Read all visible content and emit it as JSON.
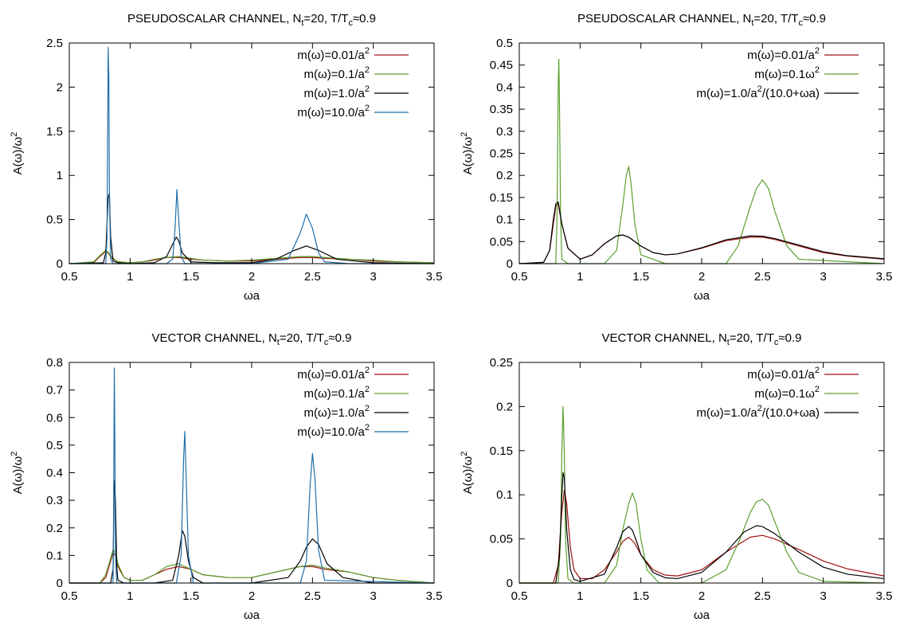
{
  "figure": {
    "panels": [
      {
        "title": {
          "main": "PSEUDOSCALAR CHANNEL, N",
          "sub": "t",
          "mid": "=20, T/T",
          "sub2": "c",
          "end": "≈0.9"
        }
      },
      {
        "title": {
          "main": "PSEUDOSCALAR CHANNEL, N",
          "sub": "t",
          "mid": "=20, T/T",
          "sub2": "c",
          "end": "≈0.9"
        }
      },
      {
        "title": {
          "main": "VECTOR CHANNEL, N",
          "sub": "t",
          "mid": "=20, T/T",
          "sub2": "c",
          "end": "≈0.9"
        }
      },
      {
        "title": {
          "main": "VECTOR CHANNEL, N",
          "sub": "t",
          "mid": "=20, T/T",
          "sub2": "c",
          "end": "≈0.9"
        }
      }
    ]
  },
  "chart_data": [
    {
      "type": "line",
      "title": "PSEUDOSCALAR CHANNEL, Nt=20, T/Tc≈0.9",
      "xlabel": "ωa",
      "ylabel": {
        "base": "A(ω)/ω",
        "sup": "2"
      },
      "xlim": [
        0.5,
        3.5
      ],
      "ylim": [
        0,
        2.5
      ],
      "xticks": [
        0.5,
        1,
        1.5,
        2,
        2.5,
        3,
        3.5
      ],
      "xtick_labels": [
        "0.5",
        "1",
        "1.5",
        "2",
        "2.5",
        "3",
        "3.5"
      ],
      "yticks": [
        0,
        0.5,
        1,
        1.5,
        2,
        2.5
      ],
      "ytick_labels": [
        "0",
        "0.5",
        "1",
        "1.5",
        "2",
        "2.5"
      ],
      "legend_position": "top-right",
      "series": [
        {
          "name": "m(ω)=0.01/a",
          "name_sup": "2",
          "color": "#a01010",
          "x": [
            0.5,
            0.7,
            0.75,
            0.8,
            0.82,
            0.85,
            0.9,
            1.0,
            1.1,
            1.2,
            1.3,
            1.4,
            1.5,
            1.6,
            1.8,
            2.0,
            2.2,
            2.4,
            2.5,
            2.6,
            2.8,
            3.0,
            3.2,
            3.5
          ],
          "y": [
            0,
            0.01,
            0.08,
            0.14,
            0.12,
            0.06,
            0.02,
            0.01,
            0.02,
            0.04,
            0.07,
            0.07,
            0.05,
            0.04,
            0.03,
            0.03,
            0.05,
            0.07,
            0.07,
            0.06,
            0.05,
            0.03,
            0.02,
            0.01
          ]
        },
        {
          "name": "m(ω)=0.1/a",
          "name_sup": "2",
          "color": "#5aa02c",
          "x": [
            0.5,
            0.7,
            0.75,
            0.8,
            0.82,
            0.85,
            0.9,
            1.0,
            1.1,
            1.2,
            1.3,
            1.4,
            1.5,
            1.6,
            1.8,
            2.0,
            2.2,
            2.4,
            2.5,
            2.6,
            2.8,
            3.0,
            3.2,
            3.5
          ],
          "y": [
            0,
            0.02,
            0.09,
            0.15,
            0.13,
            0.07,
            0.02,
            0.01,
            0.02,
            0.05,
            0.07,
            0.08,
            0.06,
            0.04,
            0.03,
            0.04,
            0.06,
            0.08,
            0.08,
            0.07,
            0.05,
            0.04,
            0.02,
            0.01
          ]
        },
        {
          "name": "m(ω)=1.0/a",
          "name_sup": "2",
          "color": "#000000",
          "x": [
            0.5,
            0.78,
            0.8,
            0.82,
            0.83,
            0.84,
            0.86,
            0.9,
            1.0,
            1.2,
            1.3,
            1.35,
            1.38,
            1.4,
            1.43,
            1.5,
            1.7,
            2.0,
            2.2,
            2.35,
            2.45,
            2.55,
            2.7,
            3.0,
            3.5
          ],
          "y": [
            0,
            0.01,
            0.12,
            0.75,
            0.8,
            0.3,
            0.03,
            0.01,
            0.0,
            0.01,
            0.08,
            0.22,
            0.3,
            0.26,
            0.12,
            0.02,
            0.01,
            0.01,
            0.05,
            0.15,
            0.2,
            0.15,
            0.05,
            0.01,
            0.0
          ]
        },
        {
          "name": "m(ω)=10.0/a",
          "name_sup": "2",
          "color": "#1f6fa8",
          "x": [
            0.5,
            0.8,
            0.81,
            0.82,
            0.825,
            0.83,
            0.84,
            0.86,
            1.0,
            1.3,
            1.35,
            1.37,
            1.385,
            1.4,
            1.42,
            1.45,
            1.6,
            2.0,
            2.3,
            2.4,
            2.45,
            2.5,
            2.55,
            2.6,
            2.8,
            3.5
          ],
          "y": [
            0,
            0.0,
            0.3,
            2.45,
            2.1,
            0.8,
            0.05,
            0.0,
            0.0,
            0.0,
            0.05,
            0.4,
            0.84,
            0.5,
            0.08,
            0.0,
            0.0,
            0.0,
            0.05,
            0.35,
            0.56,
            0.4,
            0.12,
            0.02,
            0.0,
            0.0
          ]
        }
      ]
    },
    {
      "type": "line",
      "title": "PSEUDOSCALAR CHANNEL, Nt=20, T/Tc≈0.9",
      "xlabel": "ωa",
      "ylabel": {
        "base": "A(ω)/ω",
        "sup": "2"
      },
      "xlim": [
        0.5,
        3.5
      ],
      "ylim": [
        0,
        0.5
      ],
      "xticks": [
        0.5,
        1,
        1.5,
        2,
        2.5,
        3,
        3.5
      ],
      "xtick_labels": [
        "0.5",
        "1",
        "1.5",
        "2",
        "2.5",
        "3",
        "3.5"
      ],
      "yticks": [
        0,
        0.05,
        0.1,
        0.15,
        0.2,
        0.25,
        0.3,
        0.35,
        0.4,
        0.45,
        0.5
      ],
      "ytick_labels": [
        "0",
        "0.05",
        "0.1",
        "0.15",
        "0.2",
        "0.25",
        "0.3",
        "0.35",
        "0.4",
        "0.45",
        "0.5"
      ],
      "legend_position": "top-right",
      "series": [
        {
          "name": "m(ω)=0.01/a",
          "name_sup": "2",
          "color": "#a01010",
          "x": [
            0.5,
            0.7,
            0.75,
            0.78,
            0.8,
            0.82,
            0.85,
            0.9,
            1.0,
            1.1,
            1.2,
            1.3,
            1.35,
            1.4,
            1.5,
            1.6,
            1.7,
            1.8,
            2.0,
            2.2,
            2.4,
            2.5,
            2.6,
            2.8,
            3.0,
            3.2,
            3.5
          ],
          "y": [
            0,
            0.003,
            0.03,
            0.09,
            0.13,
            0.135,
            0.09,
            0.035,
            0.01,
            0.02,
            0.045,
            0.063,
            0.065,
            0.06,
            0.04,
            0.025,
            0.02,
            0.022,
            0.035,
            0.052,
            0.06,
            0.06,
            0.055,
            0.04,
            0.025,
            0.017,
            0.01
          ]
        },
        {
          "name": "m(ω)=0.1ω",
          "name_sup": "2",
          "color": "#5aa02c",
          "x": [
            0.5,
            0.8,
            0.81,
            0.82,
            0.825,
            0.83,
            0.84,
            0.85,
            0.9,
            1.2,
            1.3,
            1.35,
            1.38,
            1.4,
            1.42,
            1.45,
            1.5,
            1.7,
            2.2,
            2.3,
            2.4,
            2.45,
            2.5,
            2.55,
            2.6,
            2.7,
            2.8,
            3.5
          ],
          "y": [
            0,
            0.0,
            0.1,
            0.4,
            0.463,
            0.38,
            0.1,
            0.01,
            0.0,
            0.0,
            0.03,
            0.13,
            0.2,
            0.22,
            0.18,
            0.09,
            0.02,
            0.0,
            0.0,
            0.04,
            0.13,
            0.17,
            0.19,
            0.17,
            0.12,
            0.04,
            0.01,
            0.0
          ]
        },
        {
          "name": "m(ω)=1.0/a",
          "name_sup": "2",
          "name_tail": "/(10.0+ωa)",
          "color": "#000000",
          "x": [
            0.5,
            0.7,
            0.75,
            0.78,
            0.8,
            0.82,
            0.85,
            0.9,
            1.0,
            1.1,
            1.2,
            1.3,
            1.35,
            1.4,
            1.5,
            1.6,
            1.7,
            1.8,
            2.0,
            2.2,
            2.4,
            2.5,
            2.6,
            2.8,
            3.0,
            3.2,
            3.5
          ],
          "y": [
            0,
            0.003,
            0.03,
            0.1,
            0.135,
            0.14,
            0.09,
            0.035,
            0.01,
            0.02,
            0.045,
            0.063,
            0.065,
            0.06,
            0.04,
            0.025,
            0.02,
            0.022,
            0.036,
            0.054,
            0.063,
            0.062,
            0.057,
            0.042,
            0.027,
            0.018,
            0.011
          ]
        }
      ]
    },
    {
      "type": "line",
      "title": "VECTOR CHANNEL, Nt=20, T/Tc≈0.9",
      "xlabel": "ωa",
      "ylabel": {
        "base": "A(ω)/ω",
        "sup": "2"
      },
      "xlim": [
        0.5,
        3.5
      ],
      "ylim": [
        0,
        0.8
      ],
      "xticks": [
        0.5,
        1,
        1.5,
        2,
        2.5,
        3,
        3.5
      ],
      "xtick_labels": [
        "0.5",
        "1",
        "1.5",
        "2",
        "2.5",
        "3",
        "3.5"
      ],
      "yticks": [
        0,
        0.1,
        0.2,
        0.3,
        0.4,
        0.5,
        0.6,
        0.7,
        0.8
      ],
      "ytick_labels": [
        "0",
        "0.1",
        "0.2",
        "0.3",
        "0.4",
        "0.5",
        "0.6",
        "0.7",
        "0.8"
      ],
      "legend_position": "top-right",
      "series": [
        {
          "name": "m(ω)=0.01/a",
          "name_sup": "2",
          "color": "#a01010",
          "x": [
            0.5,
            0.75,
            0.8,
            0.84,
            0.86,
            0.88,
            0.9,
            0.95,
            1.0,
            1.1,
            1.2,
            1.3,
            1.4,
            1.5,
            1.6,
            1.8,
            2.0,
            2.2,
            2.4,
            2.5,
            2.6,
            2.8,
            3.0,
            3.2,
            3.5
          ],
          "y": [
            0,
            0.0,
            0.02,
            0.08,
            0.11,
            0.1,
            0.06,
            0.02,
            0.01,
            0.01,
            0.03,
            0.05,
            0.06,
            0.05,
            0.03,
            0.02,
            0.02,
            0.04,
            0.06,
            0.06,
            0.05,
            0.04,
            0.02,
            0.01,
            0.0
          ]
        },
        {
          "name": "m(ω)=0.1/a",
          "name_sup": "2",
          "color": "#5aa02c",
          "x": [
            0.5,
            0.75,
            0.8,
            0.84,
            0.86,
            0.88,
            0.9,
            0.95,
            1.0,
            1.1,
            1.2,
            1.3,
            1.4,
            1.5,
            1.6,
            1.8,
            2.0,
            2.2,
            2.4,
            2.5,
            2.6,
            2.8,
            3.0,
            3.2,
            3.5
          ],
          "y": [
            0,
            0.0,
            0.03,
            0.09,
            0.12,
            0.11,
            0.07,
            0.02,
            0.01,
            0.01,
            0.03,
            0.06,
            0.07,
            0.05,
            0.03,
            0.02,
            0.02,
            0.04,
            0.06,
            0.065,
            0.055,
            0.04,
            0.02,
            0.01,
            0.0
          ]
        },
        {
          "name": "m(ω)=1.0/a",
          "name_sup": "2",
          "color": "#000000",
          "x": [
            0.5,
            0.84,
            0.86,
            0.87,
            0.88,
            0.89,
            0.9,
            0.95,
            1.2,
            1.35,
            1.4,
            1.43,
            1.45,
            1.48,
            1.52,
            1.6,
            2.0,
            2.3,
            2.4,
            2.45,
            2.5,
            2.55,
            2.62,
            2.75,
            3.0,
            3.5
          ],
          "y": [
            0,
            0.0,
            0.05,
            0.37,
            0.3,
            0.06,
            0.01,
            0.0,
            0.0,
            0.01,
            0.1,
            0.19,
            0.17,
            0.08,
            0.02,
            0.0,
            0.0,
            0.02,
            0.08,
            0.13,
            0.16,
            0.14,
            0.07,
            0.02,
            0.0,
            0.0
          ]
        },
        {
          "name": "m(ω)=10.0/a",
          "name_sup": "2",
          "color": "#1f6fa8",
          "x": [
            0.5,
            0.86,
            0.865,
            0.87,
            0.875,
            0.88,
            0.89,
            0.95,
            1.38,
            1.42,
            1.44,
            1.45,
            1.46,
            1.48,
            1.52,
            2.4,
            2.45,
            2.48,
            2.5,
            2.52,
            2.55,
            2.6,
            3.5
          ],
          "y": [
            0,
            0.0,
            0.3,
            0.78,
            0.5,
            0.1,
            0.0,
            0.0,
            0.0,
            0.1,
            0.45,
            0.55,
            0.4,
            0.1,
            0.0,
            0.0,
            0.08,
            0.35,
            0.47,
            0.38,
            0.12,
            0.01,
            0.0
          ]
        }
      ]
    },
    {
      "type": "line",
      "title": "VECTOR CHANNEL, Nt=20, T/Tc≈0.9",
      "xlabel": "ωa",
      "ylabel": {
        "base": "A(ω)/ω",
        "sup": "2"
      },
      "xlim": [
        0.5,
        3.5
      ],
      "ylim": [
        0,
        0.25
      ],
      "xticks": [
        0.5,
        1,
        1.5,
        2,
        2.5,
        3,
        3.5
      ],
      "xtick_labels": [
        "0.5",
        "1",
        "1.5",
        "2",
        "2.5",
        "3",
        "3.5"
      ],
      "yticks": [
        0,
        0.05,
        0.1,
        0.15,
        0.2,
        0.25
      ],
      "ytick_labels": [
        "0",
        "0.05",
        "0.1",
        "0.15",
        "0.2",
        "0.25"
      ],
      "legend_position": "top-right",
      "series": [
        {
          "name": "m(ω)=0.01/a",
          "name_sup": "2",
          "color": "#a01010",
          "x": [
            0.5,
            0.78,
            0.82,
            0.85,
            0.87,
            0.89,
            0.92,
            0.95,
            1.0,
            1.1,
            1.2,
            1.3,
            1.35,
            1.4,
            1.45,
            1.5,
            1.6,
            1.7,
            1.8,
            2.0,
            2.2,
            2.4,
            2.5,
            2.6,
            2.8,
            3.0,
            3.2,
            3.5
          ],
          "y": [
            0,
            0.0,
            0.02,
            0.08,
            0.105,
            0.09,
            0.04,
            0.015,
            0.005,
            0.005,
            0.015,
            0.035,
            0.047,
            0.052,
            0.045,
            0.032,
            0.015,
            0.009,
            0.008,
            0.015,
            0.035,
            0.052,
            0.054,
            0.05,
            0.038,
            0.025,
            0.016,
            0.008
          ]
        },
        {
          "name": "m(ω)=0.1ω",
          "name_sup": "2",
          "color": "#5aa02c",
          "x": [
            0.5,
            0.82,
            0.84,
            0.85,
            0.86,
            0.87,
            0.88,
            0.9,
            0.95,
            1.2,
            1.3,
            1.35,
            1.4,
            1.43,
            1.46,
            1.5,
            1.55,
            1.65,
            2.0,
            2.2,
            2.3,
            2.4,
            2.45,
            2.5,
            2.55,
            2.6,
            2.7,
            2.8,
            3.0,
            3.5
          ],
          "y": [
            0,
            0.0,
            0.05,
            0.15,
            0.2,
            0.15,
            0.05,
            0.005,
            0.0,
            0.0,
            0.02,
            0.06,
            0.09,
            0.102,
            0.09,
            0.05,
            0.015,
            0.0,
            0.0,
            0.015,
            0.045,
            0.08,
            0.092,
            0.095,
            0.088,
            0.07,
            0.035,
            0.012,
            0.002,
            0.0
          ]
        },
        {
          "name": "m(ω)=1.0/a",
          "name_sup": "2",
          "name_tail": "/(10.0+ωa)",
          "color": "#000000",
          "x": [
            0.5,
            0.8,
            0.83,
            0.85,
            0.86,
            0.87,
            0.89,
            0.92,
            0.95,
            1.0,
            1.2,
            1.3,
            1.35,
            1.4,
            1.43,
            1.47,
            1.5,
            1.6,
            1.7,
            1.8,
            2.0,
            2.2,
            2.35,
            2.45,
            2.5,
            2.6,
            2.8,
            3.0,
            3.2,
            3.5
          ],
          "y": [
            0,
            0.0,
            0.03,
            0.1,
            0.125,
            0.12,
            0.06,
            0.015,
            0.004,
            0.002,
            0.01,
            0.04,
            0.058,
            0.064,
            0.06,
            0.045,
            0.032,
            0.012,
            0.006,
            0.005,
            0.012,
            0.035,
            0.058,
            0.065,
            0.064,
            0.056,
            0.035,
            0.018,
            0.01,
            0.005
          ]
        }
      ]
    }
  ]
}
